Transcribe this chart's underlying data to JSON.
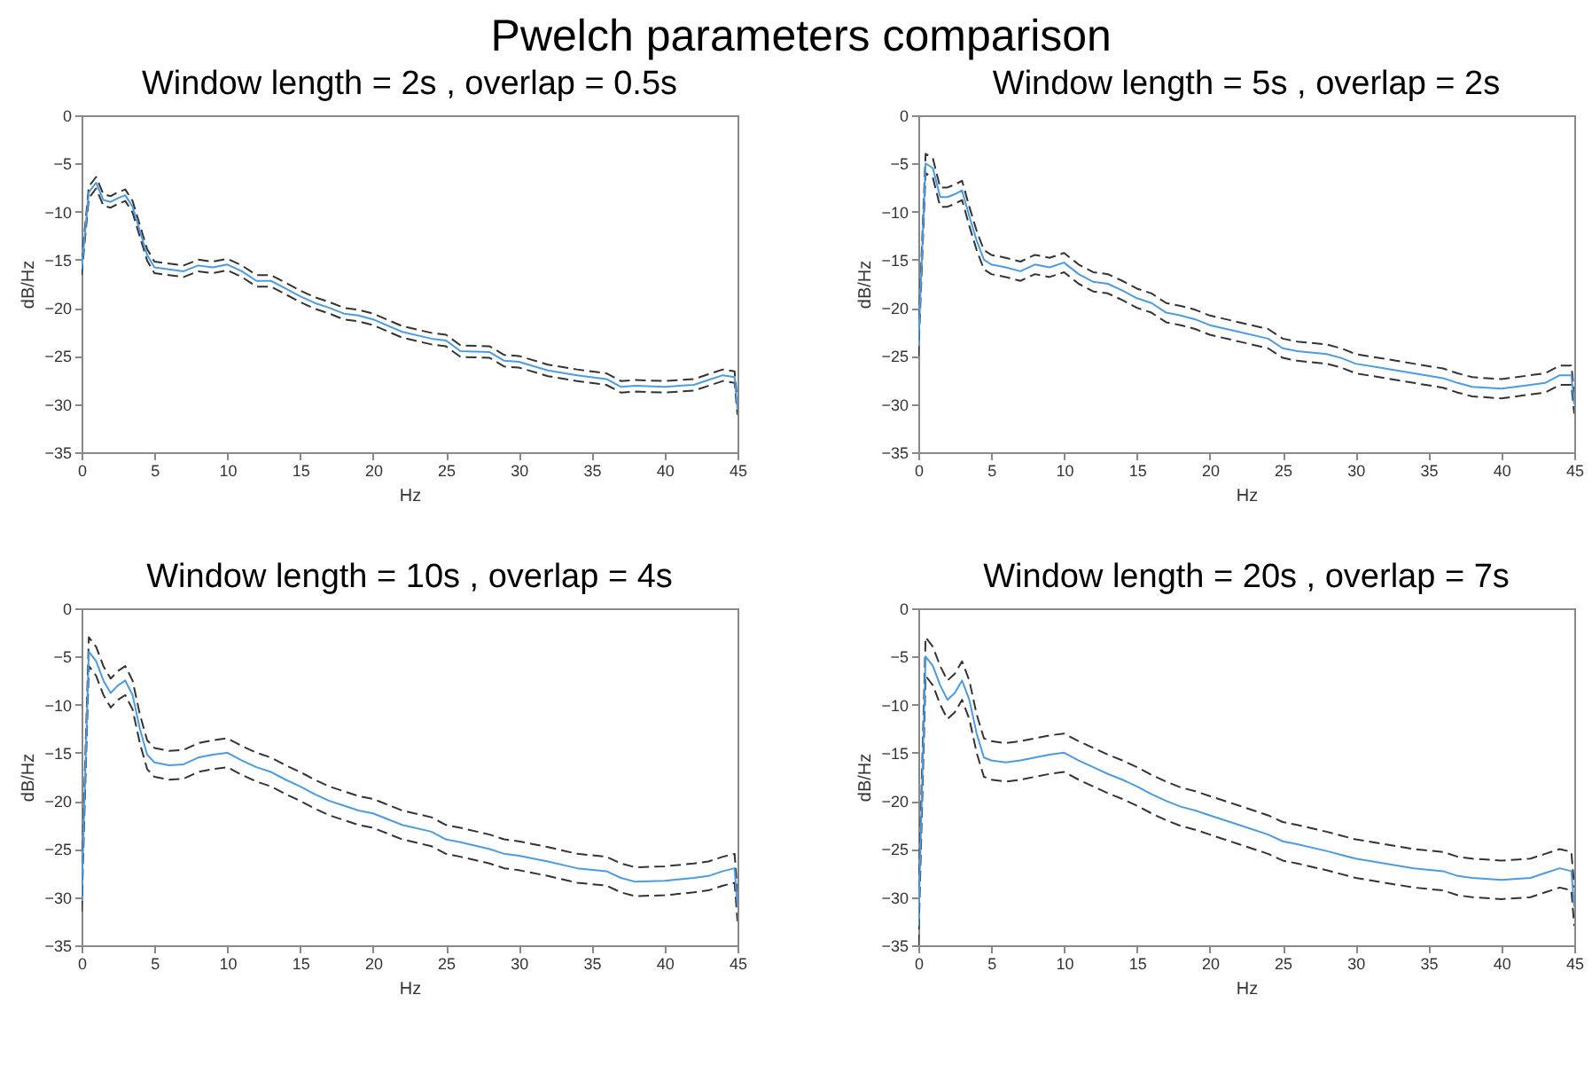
{
  "chart_data": [
    {
      "type": "line",
      "title": "Window length = 2s , overlap = 0.5s",
      "annotations": [
        "Pwelch parameters comparison"
      ],
      "xlabel": "Hz",
      "ylabel": "dB/Hz",
      "xlim": [
        0,
        45
      ],
      "ylim": [
        -35,
        0
      ],
      "xticks": [
        0,
        5,
        10,
        15,
        20,
        25,
        30,
        35,
        40,
        45
      ],
      "yticks": [
        -35,
        -30,
        -25,
        -20,
        -15,
        -10,
        -5,
        0
      ],
      "x": [
        0,
        0.5,
        1,
        1.5,
        2,
        2.5,
        3,
        3.5,
        4,
        4.5,
        5,
        6,
        7,
        8,
        9,
        10,
        11,
        12,
        13,
        14,
        15,
        16,
        17,
        18,
        19,
        20,
        22,
        24,
        25,
        26,
        28,
        29,
        30,
        32,
        34,
        36,
        37,
        38,
        40,
        42,
        43,
        44,
        44.8,
        45
      ],
      "series": [
        {
          "color": "#333333",
          "line_style": "dashed",
          "values": [
            -15.4,
            -7.4,
            -6.4,
            -8.2,
            -8.4,
            -8,
            -7.7,
            -8.9,
            -11.4,
            -13.9,
            -15.2,
            -15.4,
            -15.6,
            -15,
            -15.2,
            -14.9,
            -15.6,
            -16.6,
            -16.6,
            -17.4,
            -18.2,
            -18.9,
            -19.4,
            -20,
            -20.2,
            -20.6,
            -21.9,
            -22.6,
            -22.8,
            -23.9,
            -24,
            -24.9,
            -25,
            -25.9,
            -26.4,
            -26.8,
            -27.6,
            -27.5,
            -27.6,
            -27.4,
            -26.9,
            -26.4,
            -26.6,
            -29.9
          ]
        },
        {
          "color": "#333333",
          "line_style": "dashed",
          "values": [
            -16.6,
            -8.6,
            -7.6,
            -9.4,
            -9.6,
            -9.2,
            -8.9,
            -10.1,
            -12.6,
            -15.1,
            -16.4,
            -16.6,
            -16.8,
            -16.2,
            -16.4,
            -16.1,
            -16.8,
            -17.8,
            -17.8,
            -18.6,
            -19.4,
            -20.1,
            -20.6,
            -21.2,
            -21.4,
            -21.8,
            -23.1,
            -23.8,
            -24,
            -25.1,
            -25.2,
            -26.1,
            -26.2,
            -27.1,
            -27.6,
            -28,
            -28.8,
            -28.7,
            -28.8,
            -28.6,
            -28.1,
            -27.6,
            -27.8,
            -31.1
          ]
        },
        {
          "color": "#4c9be0",
          "line_style": "solid",
          "values": [
            -16,
            -8,
            -7,
            -8.8,
            -9,
            -8.6,
            -8.3,
            -9.5,
            -12,
            -14.5,
            -15.8,
            -16,
            -16.2,
            -15.6,
            -15.8,
            -15.5,
            -16.2,
            -17.2,
            -17.2,
            -18,
            -18.8,
            -19.5,
            -20,
            -20.6,
            -20.8,
            -21.2,
            -22.5,
            -23.2,
            -23.4,
            -24.5,
            -24.6,
            -25.5,
            -25.6,
            -26.5,
            -27,
            -27.4,
            -28.2,
            -28.1,
            -28.2,
            -28,
            -27.5,
            -27,
            -27.2,
            -30.5
          ]
        }
      ]
    },
    {
      "type": "line",
      "title": "Window length = 5s , overlap = 2s",
      "xlabel": "Hz",
      "ylabel": "dB/Hz",
      "xlim": [
        0,
        45
      ],
      "ylim": [
        -35,
        0
      ],
      "xticks": [
        0,
        5,
        10,
        15,
        20,
        25,
        30,
        35,
        40,
        45
      ],
      "yticks": [
        -35,
        -30,
        -25,
        -20,
        -15,
        -10,
        -5,
        0
      ],
      "x": [
        0,
        0.5,
        1,
        1.5,
        2,
        2.5,
        3,
        3.5,
        4,
        4.5,
        5,
        6,
        7,
        8,
        9,
        10,
        11,
        12,
        13,
        14,
        15,
        16,
        17,
        18,
        19,
        20,
        22,
        24,
        25,
        26,
        28,
        29,
        30,
        32,
        34,
        36,
        37,
        38,
        40,
        42,
        43,
        44,
        44.8,
        45
      ],
      "series": [
        {
          "color": "#333333",
          "line_style": "dashed",
          "values": [
            -23,
            -4,
            -4.5,
            -7.5,
            -7.5,
            -7.2,
            -6.8,
            -9.5,
            -12,
            -14,
            -14.5,
            -14.8,
            -15.2,
            -14.5,
            -14.8,
            -14.3,
            -15.5,
            -16.3,
            -16.5,
            -17.2,
            -18,
            -18.5,
            -19.5,
            -19.8,
            -20.2,
            -20.8,
            -21.5,
            -22.2,
            -23.2,
            -23.5,
            -23.8,
            -24.2,
            -24.8,
            -25.3,
            -25.8,
            -26.3,
            -26.8,
            -27.2,
            -27.4,
            -27,
            -26.8,
            -26,
            -26,
            -29
          ]
        },
        {
          "color": "#333333",
          "line_style": "dashed",
          "values": [
            -25,
            -6,
            -6.5,
            -9.5,
            -9.5,
            -9.2,
            -8.8,
            -11.5,
            -14,
            -16,
            -16.5,
            -16.8,
            -17.2,
            -16.5,
            -16.8,
            -16.3,
            -17.5,
            -18.3,
            -18.5,
            -19.2,
            -20,
            -20.5,
            -21.5,
            -21.8,
            -22.2,
            -22.8,
            -23.5,
            -24.2,
            -25.2,
            -25.5,
            -25.8,
            -26.2,
            -26.8,
            -27.3,
            -27.8,
            -28.3,
            -28.8,
            -29.2,
            -29.4,
            -29,
            -28.8,
            -28,
            -28,
            -31
          ]
        },
        {
          "color": "#4c9be0",
          "line_style": "solid",
          "values": [
            -24,
            -5,
            -5.5,
            -8.5,
            -8.5,
            -8.2,
            -7.8,
            -10.5,
            -13,
            -15,
            -15.5,
            -15.8,
            -16.2,
            -15.5,
            -15.8,
            -15.3,
            -16.5,
            -17.3,
            -17.5,
            -18.2,
            -19,
            -19.5,
            -20.5,
            -20.8,
            -21.2,
            -21.8,
            -22.5,
            -23.2,
            -24.2,
            -24.5,
            -24.8,
            -25.2,
            -25.8,
            -26.3,
            -26.8,
            -27.3,
            -27.8,
            -28.2,
            -28.4,
            -28,
            -27.8,
            -27,
            -27,
            -30
          ]
        }
      ]
    },
    {
      "type": "line",
      "title": "Window length = 10s , overlap = 4s",
      "xlabel": "Hz",
      "ylabel": "dB/Hz",
      "xlim": [
        0,
        45
      ],
      "ylim": [
        -35,
        0
      ],
      "xticks": [
        0,
        5,
        10,
        15,
        20,
        25,
        30,
        35,
        40,
        45
      ],
      "yticks": [
        -35,
        -30,
        -25,
        -20,
        -15,
        -10,
        -5,
        0
      ],
      "x": [
        0,
        0.5,
        1,
        1.5,
        2,
        2.5,
        3,
        3.5,
        4,
        4.5,
        5,
        6,
        7,
        8,
        9,
        10,
        11,
        12,
        13,
        14,
        15,
        16,
        17,
        18,
        19,
        20,
        22,
        24,
        25,
        26,
        28,
        29,
        30,
        32,
        34,
        36,
        37,
        38,
        40,
        42,
        43,
        44,
        44.8,
        45
      ],
      "series": [
        {
          "color": "#333333",
          "line_style": "dashed",
          "values": [
            -28.5,
            -3,
            -4,
            -6,
            -7.3,
            -6.5,
            -6,
            -7.5,
            -11,
            -13.7,
            -14.5,
            -14.8,
            -14.7,
            -14,
            -13.7,
            -13.5,
            -14.3,
            -15,
            -15.5,
            -16.3,
            -17,
            -17.8,
            -18.5,
            -19,
            -19.5,
            -19.8,
            -21,
            -21.7,
            -22.5,
            -22.8,
            -23.5,
            -24,
            -24.2,
            -24.8,
            -25.5,
            -25.8,
            -26.5,
            -26.9,
            -26.8,
            -26.5,
            -26.3,
            -25.8,
            -25.5,
            -29.5
          ]
        },
        {
          "color": "#333333",
          "line_style": "dashed",
          "values": [
            -31.5,
            -6,
            -7,
            -9,
            -10.3,
            -9.5,
            -9,
            -10.5,
            -14,
            -16.7,
            -17.5,
            -17.8,
            -17.7,
            -17,
            -16.7,
            -16.5,
            -17.3,
            -18,
            -18.5,
            -19.3,
            -20,
            -20.8,
            -21.5,
            -22,
            -22.5,
            -22.8,
            -24,
            -24.7,
            -25.5,
            -25.8,
            -26.5,
            -27,
            -27.2,
            -27.8,
            -28.5,
            -28.8,
            -29.5,
            -29.9,
            -29.8,
            -29.5,
            -29.3,
            -28.8,
            -28.5,
            -32.5
          ]
        },
        {
          "color": "#4c9be0",
          "line_style": "solid",
          "values": [
            -30,
            -4.5,
            -5.5,
            -7.5,
            -8.8,
            -8,
            -7.5,
            -9,
            -12.5,
            -15.2,
            -16,
            -16.3,
            -16.2,
            -15.5,
            -15.2,
            -15,
            -15.8,
            -16.5,
            -17,
            -17.8,
            -18.5,
            -19.3,
            -20,
            -20.5,
            -21,
            -21.3,
            -22.5,
            -23.2,
            -24,
            -24.3,
            -25,
            -25.5,
            -25.7,
            -26.3,
            -27,
            -27.3,
            -28,
            -28.4,
            -28.3,
            -28,
            -27.8,
            -27.3,
            -27,
            -31
          ]
        }
      ]
    },
    {
      "type": "line",
      "title": "Window length = 20s , overlap = 7s",
      "xlabel": "Hz",
      "ylabel": "dB/Hz",
      "xlim": [
        0,
        45
      ],
      "ylim": [
        -35,
        0
      ],
      "xticks": [
        0,
        5,
        10,
        15,
        20,
        25,
        30,
        35,
        40,
        45
      ],
      "yticks": [
        -35,
        -30,
        -25,
        -20,
        -15,
        -10,
        -5,
        0
      ],
      "x": [
        0,
        0.5,
        1,
        1.5,
        2,
        2.5,
        3,
        3.5,
        4,
        4.5,
        5,
        6,
        7,
        8,
        9,
        10,
        11,
        12,
        13,
        14,
        15,
        16,
        17,
        18,
        19,
        20,
        22,
        24,
        25,
        26,
        28,
        29,
        30,
        32,
        34,
        36,
        37,
        38,
        40,
        42,
        43,
        44,
        44.8,
        45
      ],
      "series": [
        {
          "color": "#333333",
          "line_style": "dashed",
          "values": [
            -31,
            -3,
            -4,
            -6,
            -7.5,
            -6.8,
            -5.5,
            -7.5,
            -11,
            -13.5,
            -13.8,
            -14,
            -13.8,
            -13.5,
            -13.2,
            -13,
            -13.8,
            -14.5,
            -15.2,
            -15.8,
            -16.5,
            -17.3,
            -18,
            -18.6,
            -19,
            -19.5,
            -20.5,
            -21.5,
            -22.2,
            -22.5,
            -23.2,
            -23.6,
            -24,
            -24.5,
            -25,
            -25.3,
            -25.8,
            -26,
            -26.2,
            -26,
            -25.5,
            -25,
            -25.3,
            -29
          ]
        },
        {
          "color": "#333333",
          "line_style": "dashed",
          "values": [
            -35,
            -7,
            -8,
            -10,
            -11.5,
            -10.8,
            -9.5,
            -11.5,
            -15,
            -17.5,
            -17.8,
            -18,
            -17.8,
            -17.5,
            -17.2,
            -17,
            -17.8,
            -18.5,
            -19.2,
            -19.8,
            -20.5,
            -21.3,
            -22,
            -22.6,
            -23,
            -23.5,
            -24.5,
            -25.5,
            -26.2,
            -26.5,
            -27.2,
            -27.6,
            -28,
            -28.5,
            -29,
            -29.3,
            -29.8,
            -30,
            -30.2,
            -30,
            -29.5,
            -29,
            -29.3,
            -33
          ]
        },
        {
          "color": "#4c9be0",
          "line_style": "solid",
          "values": [
            -33,
            -5,
            -6,
            -8,
            -9.5,
            -8.8,
            -7.5,
            -9.5,
            -13,
            -15.5,
            -15.8,
            -16,
            -15.8,
            -15.5,
            -15.2,
            -15,
            -15.8,
            -16.5,
            -17.2,
            -17.8,
            -18.5,
            -19.3,
            -20,
            -20.6,
            -21,
            -21.5,
            -22.5,
            -23.5,
            -24.2,
            -24.5,
            -25.2,
            -25.6,
            -26,
            -26.5,
            -27,
            -27.3,
            -27.8,
            -28,
            -28.2,
            -28,
            -27.5,
            -27,
            -27.3,
            -31
          ]
        }
      ]
    }
  ]
}
